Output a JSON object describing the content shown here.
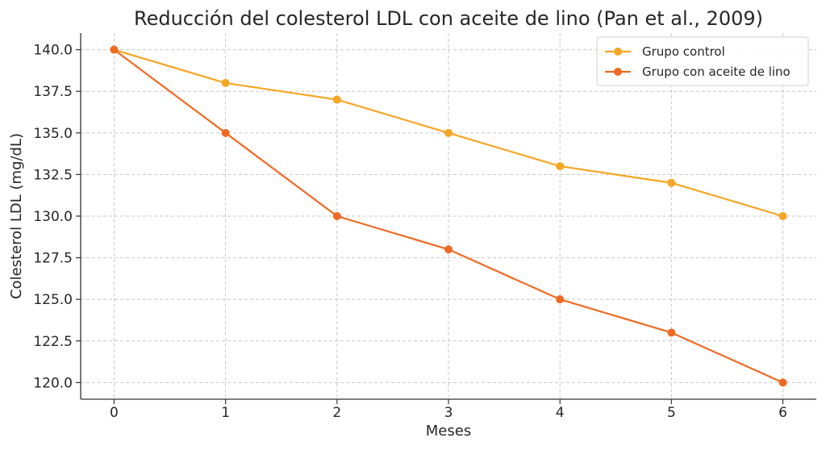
{
  "chart_data": {
    "type": "line",
    "title": "Reducción del colesterol LDL con aceite de lino (Pan et al., 2009)",
    "xlabel": "Meses",
    "ylabel": "Colesterol LDL (mg/dL)",
    "x": [
      0,
      1,
      2,
      3,
      4,
      5,
      6
    ],
    "xlim": [
      -0.3,
      6.3
    ],
    "ylim": [
      119,
      141
    ],
    "xticks": [
      "0",
      "1",
      "2",
      "3",
      "4",
      "5",
      "6"
    ],
    "yticks": [
      "120.0",
      "122.5",
      "125.0",
      "127.5",
      "130.0",
      "132.5",
      "135.0",
      "137.5",
      "140.0"
    ],
    "grid": true,
    "legend_position": "top-right",
    "series": [
      {
        "name": "Grupo control",
        "color": "#f5a623",
        "values": [
          140,
          138,
          137,
          135,
          133,
          132,
          130
        ]
      },
      {
        "name": "Grupo con aceite de lino",
        "color": "#ee6a24",
        "values": [
          140,
          135,
          130,
          128,
          125,
          123,
          120
        ]
      }
    ]
  }
}
